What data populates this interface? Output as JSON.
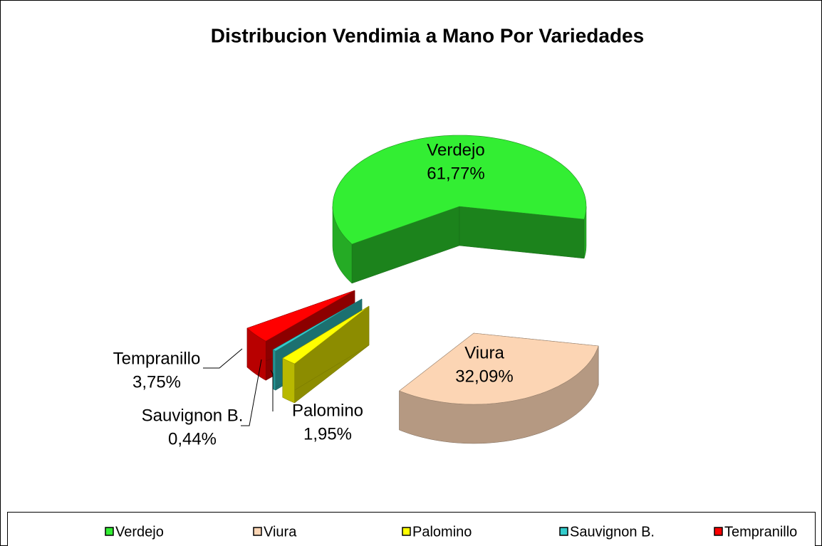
{
  "chart_data": {
    "type": "pie",
    "title": "Distribucion Vendimia a Mano Por Variedades",
    "categories": [
      "Verdejo",
      "Viura",
      "Palomino",
      "Sauvignon B.",
      "Tempranillo"
    ],
    "values": [
      61.77,
      32.09,
      1.95,
      0.44,
      3.75
    ],
    "value_labels": [
      "61,77%",
      "32,09%",
      "1,95%",
      "0,44%",
      "3,75%"
    ],
    "colors": [
      "#33ee33",
      "#fcd5b4",
      "#ffff00",
      "#33cccc",
      "#ff0000"
    ],
    "legend": "bottom"
  }
}
